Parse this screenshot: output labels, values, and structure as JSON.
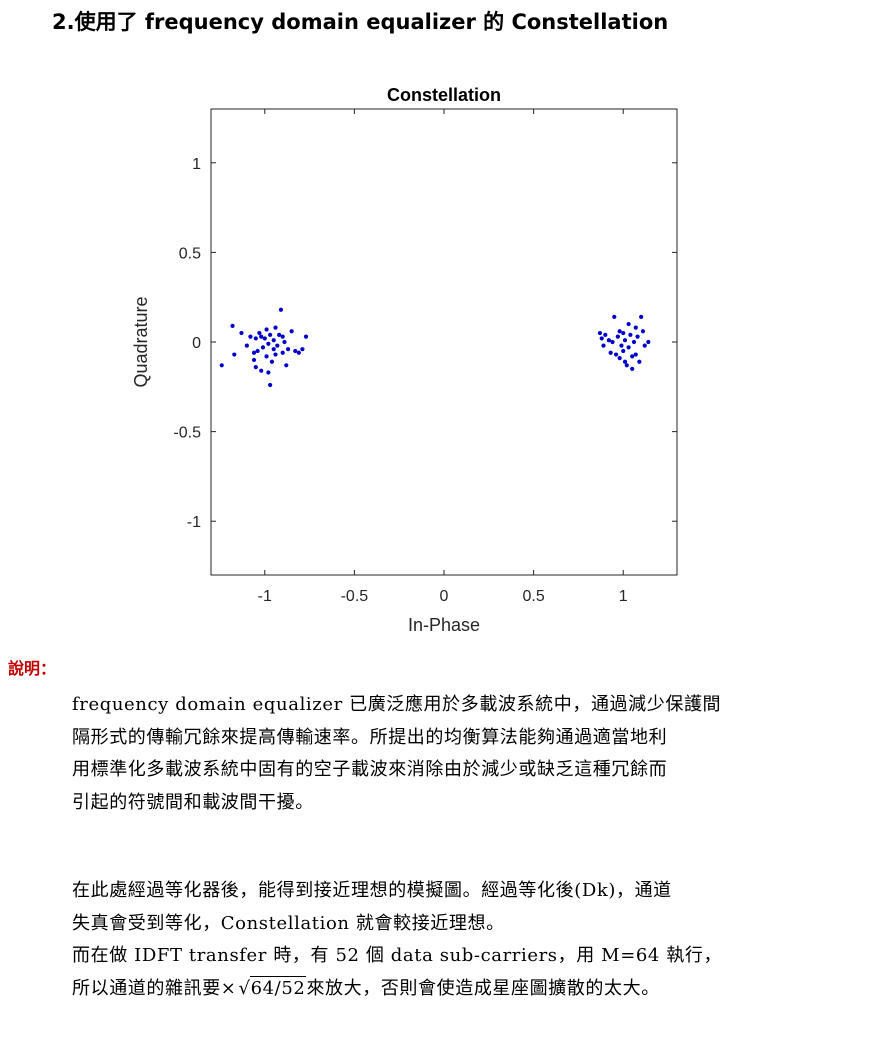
{
  "heading": "2.使用了 frequency domain equalizer 的 Constellation",
  "chart_data": {
    "type": "scatter",
    "title": "Constellation",
    "xlabel": "In-Phase",
    "ylabel": "Quadrature",
    "xlim": [
      -1.3,
      1.3
    ],
    "ylim": [
      -1.3,
      1.3
    ],
    "xticks": [
      "-1",
      "-0.5",
      "0",
      "0.5",
      "1"
    ],
    "xtick_values": [
      -1,
      -0.5,
      0,
      0.5,
      1
    ],
    "yticks": [
      "1",
      "0.5",
      "0",
      "-0.5",
      "-1"
    ],
    "ytick_values": [
      1,
      0.5,
      0,
      -0.5,
      -1
    ],
    "grid": false,
    "marker_color": "#0000cc",
    "points": [
      [
        -1.24,
        -0.13
      ],
      [
        -1.18,
        0.09
      ],
      [
        -1.17,
        -0.07
      ],
      [
        -1.13,
        0.05
      ],
      [
        -1.1,
        -0.02
      ],
      [
        -1.08,
        0.03
      ],
      [
        -1.06,
        -0.1
      ],
      [
        -1.05,
        0.02
      ],
      [
        -1.04,
        -0.05
      ],
      [
        -1.03,
        0.05
      ],
      [
        -1.02,
        -0.16
      ],
      [
        -1.01,
        -0.03
      ],
      [
        -1.0,
        0.02
      ],
      [
        -0.99,
        -0.08
      ],
      [
        -0.99,
        0.07
      ],
      [
        -0.98,
        -0.01
      ],
      [
        -0.97,
        -0.24
      ],
      [
        -0.97,
        0.04
      ],
      [
        -0.96,
        -0.11
      ],
      [
        -0.95,
        -0.04
      ],
      [
        -0.95,
        0.01
      ],
      [
        -0.94,
        0.08
      ],
      [
        -0.93,
        -0.02
      ],
      [
        -0.92,
        0.04
      ],
      [
        -0.91,
        0.18
      ],
      [
        -0.9,
        -0.06
      ],
      [
        -0.89,
        0.0
      ],
      [
        -0.88,
        -0.13
      ],
      [
        -0.87,
        -0.04
      ],
      [
        -0.85,
        0.06
      ],
      [
        -0.83,
        -0.05
      ],
      [
        -0.81,
        -0.06
      ],
      [
        -0.79,
        -0.04
      ],
      [
        -0.77,
        0.03
      ],
      [
        -1.06,
        -0.06
      ],
      [
        -1.02,
        0.03
      ],
      [
        -0.94,
        -0.07
      ],
      [
        -0.98,
        -0.17
      ],
      [
        -1.05,
        -0.14
      ],
      [
        -0.9,
        0.03
      ],
      [
        0.87,
        0.05
      ],
      [
        0.88,
        0.02
      ],
      [
        0.89,
        -0.02
      ],
      [
        0.9,
        0.04
      ],
      [
        0.92,
        0.01
      ],
      [
        0.93,
        -0.06
      ],
      [
        0.94,
        0.0
      ],
      [
        0.95,
        0.14
      ],
      [
        0.96,
        -0.07
      ],
      [
        0.97,
        0.03
      ],
      [
        0.98,
        -0.09
      ],
      [
        0.99,
        -0.02
      ],
      [
        1.0,
        0.05
      ],
      [
        1.0,
        -0.05
      ],
      [
        1.01,
        0.01
      ],
      [
        1.02,
        -0.13
      ],
      [
        1.03,
        0.1
      ],
      [
        1.03,
        -0.03
      ],
      [
        1.04,
        0.04
      ],
      [
        1.05,
        -0.15
      ],
      [
        1.06,
        0.0
      ],
      [
        1.07,
        -0.07
      ],
      [
        1.08,
        0.03
      ],
      [
        1.09,
        -0.11
      ],
      [
        1.1,
        0.14
      ],
      [
        1.11,
        0.06
      ],
      [
        1.12,
        -0.02
      ],
      [
        1.14,
        0.0
      ],
      [
        0.98,
        0.06
      ],
      [
        1.05,
        -0.08
      ],
      [
        1.01,
        -0.11
      ],
      [
        1.07,
        0.08
      ]
    ]
  },
  "label": "說明：",
  "paragraph1": [
    "frequency domain equalizer 已廣泛應用於多載波系統中，通過減少保護間",
    "隔形式的傳輸冗餘來提高傳輸速率。所提出的均衡算法能夠通過適當地利",
    "用標準化多載波系統中固有的空子載波來消除由於減少或缺乏這種冗餘而",
    "引起的符號間和載波間干擾。"
  ],
  "paragraph2": [
    "在此處經過等化器後，能得到接近理想的模擬圖。經過等化後(Dk)，通道",
    "失真會受到等化，Constellation 就會較接近理想。",
    "而在做 IDFT transfer 時，有 52 個 data sub-carriers，用 M=64 執行，"
  ],
  "last_line": {
    "before": "所以通道的雜訊要×",
    "radical": "64/52",
    "after": "來放大，否則會使造成星座圖擴散的太大。"
  }
}
